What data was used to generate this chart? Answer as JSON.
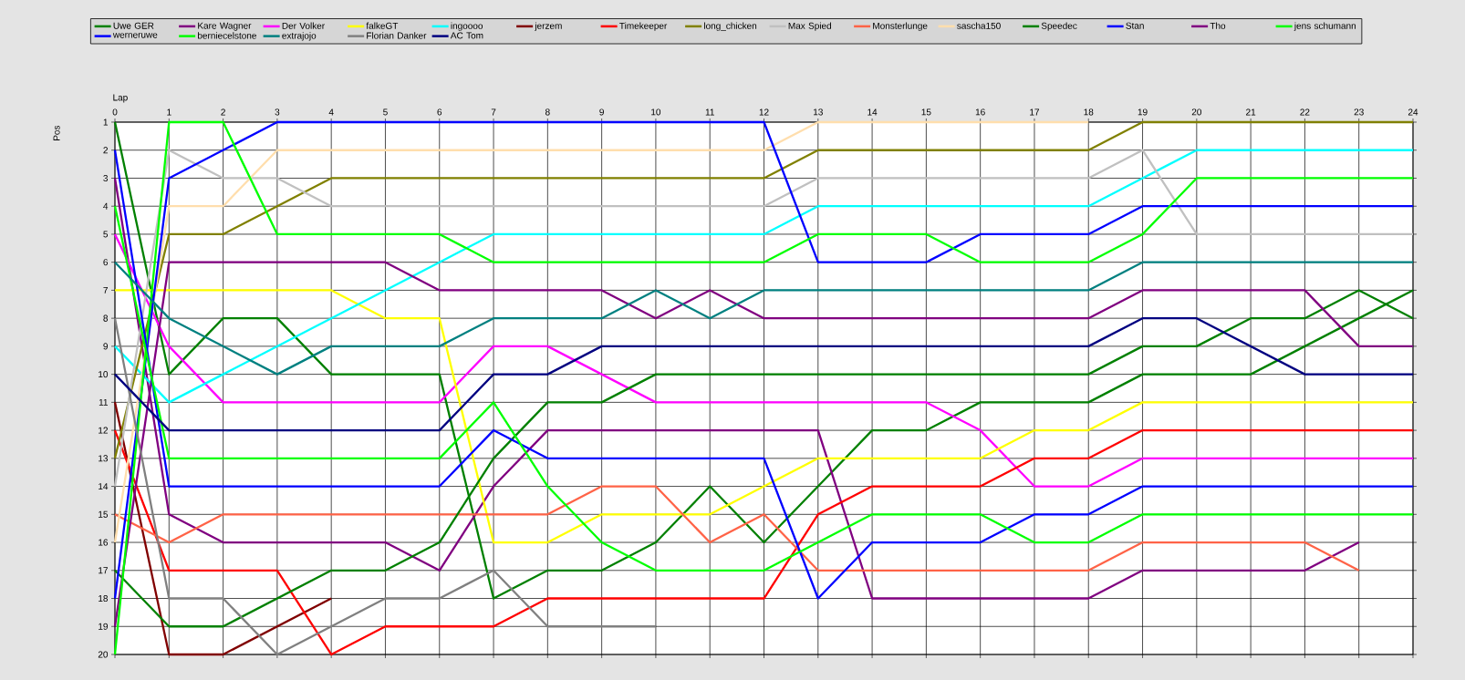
{
  "chart_data": {
    "type": "line",
    "xlabel": "Lap",
    "ylabel": "Pos",
    "x": [
      0,
      1,
      2,
      3,
      4,
      5,
      6,
      7,
      8,
      9,
      10,
      11,
      12,
      13,
      14,
      15,
      16,
      17,
      18,
      19,
      20,
      21,
      22,
      23,
      24
    ],
    "xlim": [
      0,
      24
    ],
    "xticks": [
      0,
      1,
      2,
      3,
      4,
      5,
      6,
      7,
      8,
      9,
      10,
      11,
      12,
      13,
      14,
      15,
      16,
      17,
      18,
      19,
      20,
      21,
      22,
      23,
      24
    ],
    "ylim": [
      20,
      1
    ],
    "yticks": [
      1,
      2,
      3,
      4,
      5,
      6,
      7,
      8,
      9,
      10,
      11,
      12,
      13,
      14,
      15,
      16,
      17,
      18,
      19,
      20
    ],
    "grid": true,
    "legend": "top",
    "series": [
      {
        "name": "Uwe GER",
        "color": "#008000",
        "values": [
          1,
          10,
          8,
          8,
          10,
          10,
          10,
          18,
          17,
          17,
          16,
          14,
          16,
          14,
          12,
          12,
          11,
          11,
          11,
          10,
          10,
          10,
          9,
          8,
          7
        ]
      },
      {
        "name": "Kare Wagner",
        "color": "#800080",
        "values": [
          3,
          15,
          16,
          16,
          16,
          16,
          17,
          14,
          12,
          12,
          12,
          12,
          12,
          12,
          18,
          18,
          18,
          18,
          18,
          17,
          17,
          17,
          17,
          16,
          null
        ]
      },
      {
        "name": "Der Volker",
        "color": "#ff00ff",
        "values": [
          5,
          9,
          11,
          11,
          11,
          11,
          11,
          9,
          9,
          10,
          11,
          11,
          11,
          11,
          11,
          11,
          12,
          14,
          14,
          13,
          13,
          13,
          13,
          13,
          13
        ]
      },
      {
        "name": "falkeGT",
        "color": "#ffff00",
        "values": [
          7,
          7,
          7,
          7,
          7,
          8,
          8,
          16,
          16,
          15,
          15,
          15,
          14,
          13,
          13,
          13,
          13,
          12,
          12,
          11,
          11,
          11,
          11,
          11,
          11
        ]
      },
      {
        "name": "ingoooo",
        "color": "#00ffff",
        "values": [
          9,
          11,
          10,
          9,
          8,
          7,
          6,
          5,
          5,
          5,
          5,
          5,
          5,
          4,
          4,
          4,
          4,
          4,
          4,
          3,
          2,
          2,
          2,
          2,
          2
        ]
      },
      {
        "name": "jerzem",
        "color": "#800000",
        "values": [
          11,
          20,
          20,
          19,
          18,
          null,
          null,
          null,
          null,
          null,
          null,
          null,
          null,
          null,
          null,
          null,
          null,
          null,
          null,
          null,
          null,
          null,
          null,
          null,
          null
        ]
      },
      {
        "name": "Timekeeper",
        "color": "#ff0000",
        "values": [
          12,
          17,
          17,
          17,
          20,
          19,
          19,
          19,
          18,
          18,
          18,
          18,
          18,
          15,
          14,
          14,
          14,
          13,
          13,
          12,
          12,
          12,
          12,
          12,
          12
        ]
      },
      {
        "name": "long_chicken",
        "color": "#808000",
        "values": [
          13,
          5,
          5,
          4,
          3,
          3,
          3,
          3,
          3,
          3,
          3,
          3,
          3,
          2,
          2,
          2,
          2,
          2,
          2,
          1,
          1,
          1,
          1,
          1,
          1
        ]
      },
      {
        "name": "Max Spied",
        "color": "#c0c0c0",
        "values": [
          14,
          2,
          3,
          3,
          4,
          4,
          4,
          4,
          4,
          4,
          4,
          4,
          4,
          3,
          3,
          3,
          3,
          3,
          3,
          2,
          5,
          5,
          5,
          5,
          5
        ]
      },
      {
        "name": "Monsterlunge",
        "color": "#ff6347",
        "values": [
          15,
          16,
          15,
          15,
          15,
          15,
          15,
          15,
          15,
          14,
          14,
          16,
          15,
          17,
          17,
          17,
          17,
          17,
          17,
          16,
          16,
          16,
          16,
          17,
          null
        ]
      },
      {
        "name": "sascha150",
        "color": "#ffdead",
        "values": [
          16,
          4,
          4,
          2,
          2,
          2,
          2,
          2,
          2,
          2,
          2,
          2,
          2,
          1,
          1,
          1,
          1,
          1,
          1,
          null,
          null,
          null,
          null,
          null,
          null
        ]
      },
      {
        "name": "Speedec",
        "color": "#008000",
        "values": [
          17,
          19,
          19,
          18,
          17,
          17,
          16,
          13,
          11,
          11,
          10,
          10,
          10,
          10,
          10,
          10,
          10,
          10,
          10,
          9,
          9,
          8,
          8,
          7,
          8
        ]
      },
      {
        "name": "Stan",
        "color": "#0000ff",
        "values": [
          18,
          3,
          2,
          1,
          1,
          1,
          1,
          1,
          1,
          1,
          1,
          1,
          1,
          6,
          6,
          6,
          5,
          5,
          5,
          4,
          4,
          4,
          4,
          4,
          4
        ]
      },
      {
        "name": "Tho",
        "color": "#800080",
        "values": [
          19,
          6,
          6,
          6,
          6,
          6,
          7,
          7,
          7,
          7,
          8,
          7,
          8,
          8,
          8,
          8,
          8,
          8,
          8,
          7,
          7,
          7,
          7,
          9,
          9
        ]
      },
      {
        "name": "jens schumann",
        "color": "#00ff00",
        "values": [
          20,
          1,
          1,
          5,
          5,
          5,
          5,
          6,
          6,
          6,
          6,
          6,
          6,
          5,
          5,
          5,
          6,
          6,
          6,
          5,
          3,
          3,
          3,
          3,
          3
        ]
      },
      {
        "name": "werneruwe",
        "color": "#0000ff",
        "values": [
          2,
          14,
          14,
          14,
          14,
          14,
          14,
          12,
          13,
          13,
          13,
          13,
          13,
          18,
          16,
          16,
          16,
          15,
          15,
          14,
          14,
          14,
          14,
          14,
          14
        ]
      },
      {
        "name": "berniecelstone",
        "color": "#00ff00",
        "values": [
          4,
          13,
          13,
          13,
          13,
          13,
          13,
          11,
          14,
          16,
          17,
          17,
          17,
          16,
          15,
          15,
          15,
          16,
          16,
          15,
          15,
          15,
          15,
          15,
          15
        ]
      },
      {
        "name": "extrajojo",
        "color": "#008080",
        "values": [
          6,
          8,
          9,
          10,
          9,
          9,
          9,
          8,
          8,
          8,
          7,
          8,
          7,
          7,
          7,
          7,
          7,
          7,
          7,
          6,
          6,
          6,
          6,
          6,
          6
        ]
      },
      {
        "name": "Florian Danker",
        "color": "#808080",
        "values": [
          8,
          18,
          18,
          20,
          19,
          18,
          18,
          17,
          19,
          19,
          19,
          null,
          null,
          null,
          null,
          null,
          null,
          null,
          null,
          null,
          null,
          null,
          null,
          null,
          null
        ]
      },
      {
        "name": "AC Tom",
        "color": "#000080",
        "values": [
          10,
          12,
          12,
          12,
          12,
          12,
          12,
          10,
          10,
          9,
          9,
          9,
          9,
          9,
          9,
          9,
          9,
          9,
          9,
          8,
          8,
          9,
          10,
          10,
          10
        ]
      }
    ]
  }
}
